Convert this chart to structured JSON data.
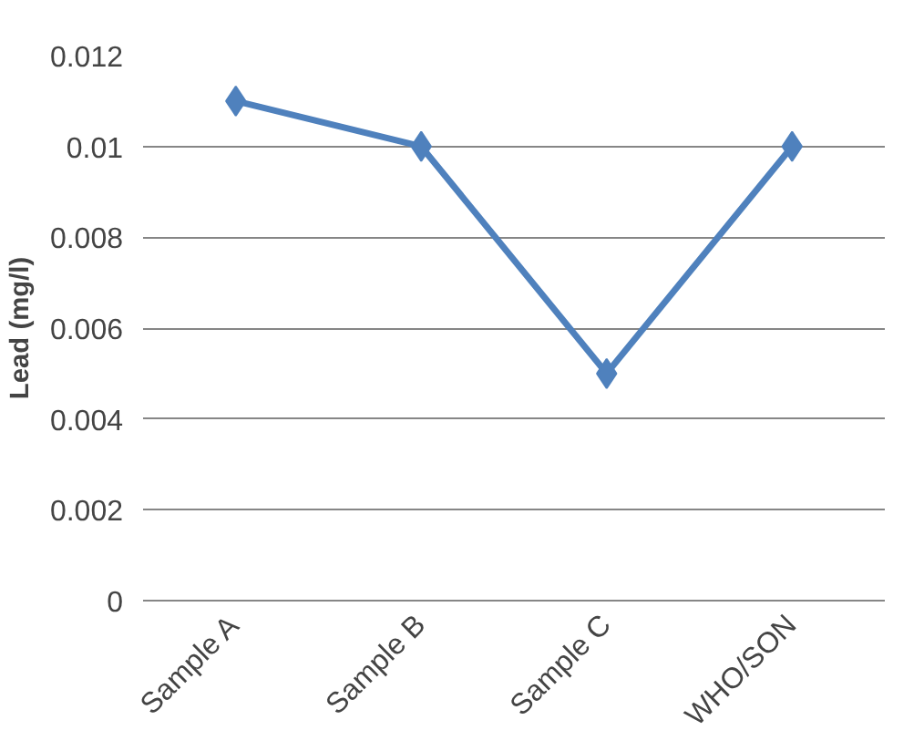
{
  "chart_data": {
    "type": "line",
    "ylabel": "Lead (mg/l)",
    "categories": [
      "Sample A",
      "Sample B",
      "Sample C",
      "WHO/SON"
    ],
    "series": [
      {
        "color": "#4f81bd",
        "values": [
          0.011,
          0.01,
          0.005,
          0.01
        ]
      }
    ],
    "ylim": [
      0,
      0.012
    ],
    "yticks": [
      0,
      0.002,
      0.004,
      0.006,
      0.008,
      0.01,
      0.012
    ],
    "grid": "y",
    "marker": "diamond",
    "line_style": "solid"
  }
}
